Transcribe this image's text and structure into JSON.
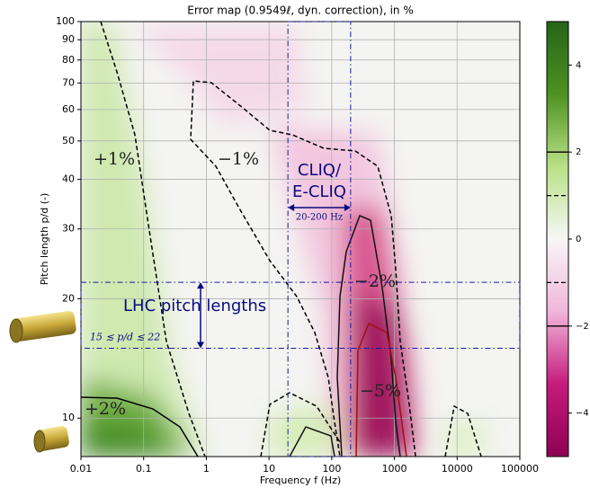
{
  "chart_data": {
    "type": "heatmap",
    "title": "Error map (0.9549ℓ, dyn. correction), in %",
    "x_label": "Frequency f (Hz)",
    "y_label": "Pitch length p/d (-)",
    "log_x": true,
    "log_y": true,
    "grid": true,
    "xlim": [
      0.01,
      100000
    ],
    "xticks": [
      0.01,
      0.1,
      1,
      10,
      100,
      1000,
      10000,
      100000
    ],
    "ylim": [
      8,
      100
    ],
    "yticks": [
      10,
      20,
      30,
      40,
      50,
      60,
      70,
      80,
      90,
      100
    ],
    "colormap": [
      "#8e0152",
      "#c51b7d",
      "#f1b6da",
      "#f7f7f7",
      "#b8e186",
      "#4d9221",
      "#276419"
    ],
    "clim": [
      -5,
      5
    ],
    "cticks": [
      {
        "value": -4,
        "label": "−4"
      },
      {
        "value": -2,
        "label": "−2"
      },
      0,
      2,
      4
    ],
    "contours": [
      {
        "level": 1,
        "label": "+1%"
      },
      {
        "level": -1,
        "label": "−1%"
      },
      {
        "level": -2,
        "label": "−2%"
      },
      {
        "level": -5,
        "label": "−5%"
      },
      {
        "level": 2,
        "label": "+2%"
      }
    ],
    "bands": [
      {
        "x": [
          20,
          200
        ],
        "label": "CLIQ/ E-CLIQ",
        "sublabel": "20-200 Hz"
      },
      {
        "y": [
          15,
          22
        ],
        "label": "LHC pitch lengths",
        "sublabel": "15 ≲ p/d ≲ 22"
      }
    ]
  }
}
